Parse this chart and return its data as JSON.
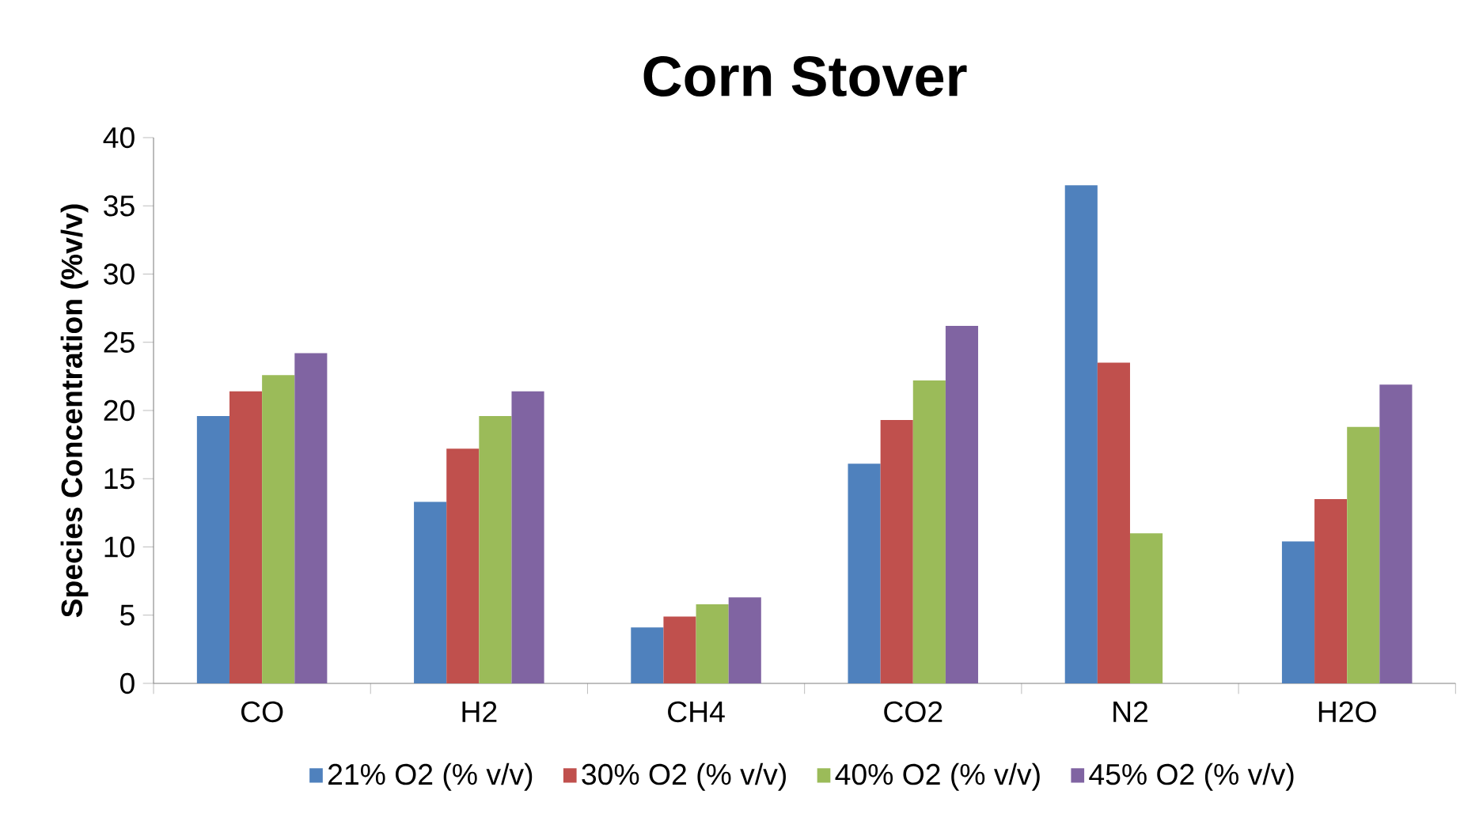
{
  "chart_data": {
    "type": "bar",
    "title": "Corn Stover",
    "ylabel": "Species Concentration (%v/v)",
    "categories": [
      "CO",
      "H2",
      "CH4",
      "CO2",
      "N2",
      "H2O"
    ],
    "series": [
      {
        "name": "21% O2 (% v/v)",
        "color": "#4f81bd",
        "values": [
          19.6,
          13.3,
          4.1,
          16.1,
          36.5,
          10.4
        ]
      },
      {
        "name": "30% O2 (% v/v)",
        "color": "#c0504d",
        "values": [
          21.4,
          17.2,
          4.9,
          19.3,
          23.5,
          13.5
        ]
      },
      {
        "name": "40% O2 (% v/v)",
        "color": "#9bbb59",
        "values": [
          22.6,
          19.6,
          5.8,
          22.2,
          11.0,
          18.8
        ]
      },
      {
        "name": "45% O2 (% v/v)",
        "color": "#8064a2",
        "values": [
          24.2,
          21.4,
          6.3,
          26.2,
          0,
          21.9
        ]
      }
    ],
    "ylim": [
      0,
      40
    ],
    "yticks": [
      0,
      5,
      10,
      15,
      20,
      25,
      30,
      35,
      40
    ],
    "legend": "bottom"
  }
}
